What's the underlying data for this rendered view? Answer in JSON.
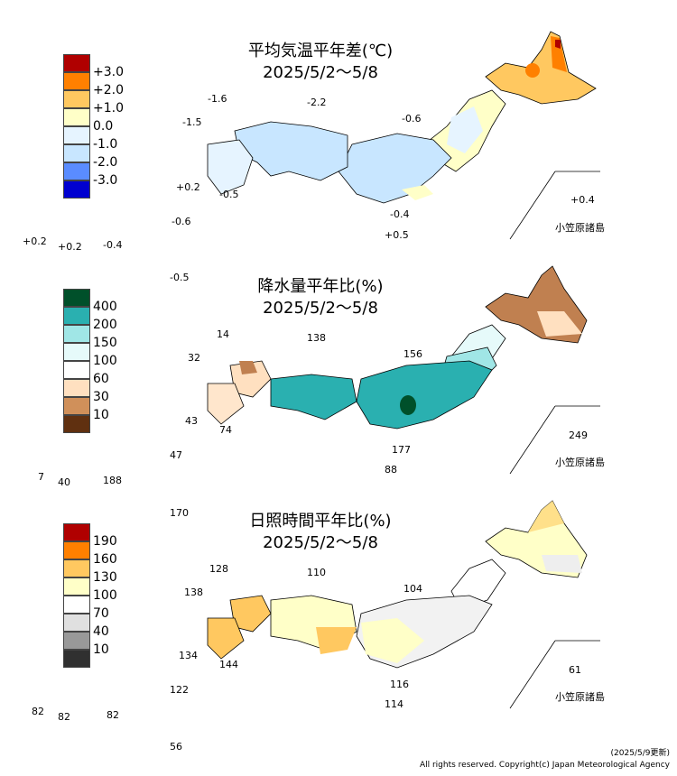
{
  "footer": {
    "updated": "(2025/5/9更新)",
    "copyright": "All rights reserved. Copyright(c) Japan Meteorological Agency"
  },
  "colors": {
    "red": "#b00000",
    "orange": "#ff8000",
    "lightorange": "#ffc860",
    "cream": "#ffffc8",
    "white": "#ffffff",
    "lightblue": "#c8e6ff",
    "blue": "#5a8cff",
    "darkblue": "#0000d0",
    "darkgreen": "#00502a",
    "teal": "#2ab0b0",
    "lightteal": "#a0e6e6",
    "paleteal": "#e6fafa",
    "tan": "#ffd9a8",
    "brown": "#c07040",
    "darkbrown": "#603010",
    "gray": "#999999",
    "darkgray": "#404040"
  },
  "panels": [
    {
      "title": "平均気温平年差(℃)",
      "period": "2025/5/2～5/8",
      "legend": [
        "+3.0",
        "+2.0",
        "+1.0",
        "0.0",
        "-1.0",
        "-2.0",
        "-3.0"
      ],
      "swatches": [
        "#b00000",
        "#ff8000",
        "#ffc860",
        "#ffffc8",
        "#d8ecff",
        "#c8e6ff",
        "#5a8cff",
        "#0000d0"
      ],
      "values": [
        "-1.6",
        "-2.2",
        "-1.5",
        "-0.6",
        "+0.2",
        "-0.5",
        "-0.6",
        "-0.4",
        "+0.5",
        "+0.2",
        "+0.2",
        "-0.4",
        "-0.5",
        "+0.4"
      ],
      "ogasawara": "小笠原諸島"
    },
    {
      "title": "降水量平年比(%)",
      "period": "2025/5/2～5/8",
      "legend": [
        "400",
        "200",
        "150",
        "100",
        "60",
        "30",
        "10"
      ],
      "swatches": [
        "#00502a",
        "#2ab0b0",
        "#a0e6e6",
        "#e6fafa",
        "#ffffff",
        "#ffe0c0",
        "#d0905a",
        "#603010"
      ],
      "values": [
        "14",
        "138",
        "32",
        "156",
        "43",
        "74",
        "177",
        "88",
        "47",
        "7",
        "40",
        "188",
        "249"
      ],
      "ogasawara": "小笠原諸島"
    },
    {
      "title": "日照時間平年比(%)",
      "period": "2025/5/2～5/8",
      "legend": [
        "190",
        "160",
        "130",
        "100",
        "70",
        "40",
        "10"
      ],
      "swatches": [
        "#b00000",
        "#ff8000",
        "#ffc860",
        "#ffffc8",
        "#ffffff",
        "#e0e0e0",
        "#999999",
        "#303030"
      ],
      "values": [
        "170",
        "128",
        "110",
        "138",
        "104",
        "134",
        "144",
        "116",
        "114",
        "122",
        "82",
        "82",
        "82",
        "56",
        "61"
      ],
      "ogasawara": "小笠原諸島"
    }
  ]
}
